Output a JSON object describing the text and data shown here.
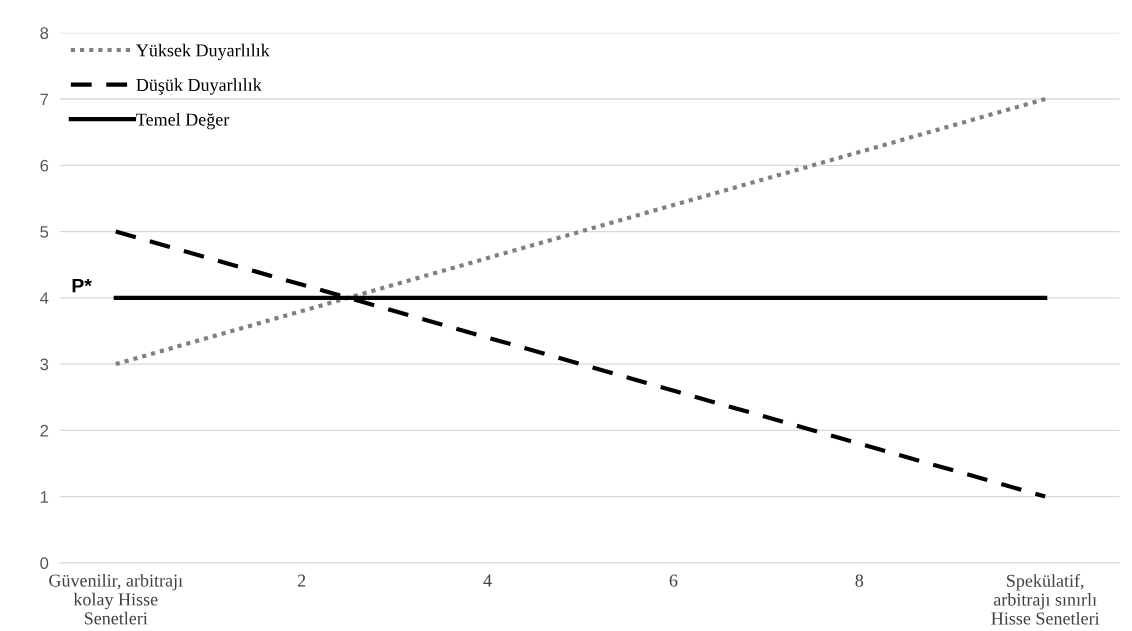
{
  "chart_data": {
    "type": "line",
    "x": [
      0,
      10
    ],
    "series": [
      {
        "name": "Yüksek Duyarlılık",
        "color": "#808080",
        "values": [
          3,
          7
        ],
        "line_style": "dotted"
      },
      {
        "name": "Düşük Duyarlılık",
        "color": "#000000",
        "values": [
          5,
          1
        ],
        "line_style": "dashed"
      },
      {
        "name": "Temel Değer",
        "color": "#000000",
        "values": [
          4,
          4
        ],
        "line_style": "solid"
      }
    ],
    "xlim": [
      -0.6,
      10.8
    ],
    "xticks": [
      {
        "value": 0,
        "label": "Güvenilir, arbitrajı\nkolay Hisse\nSenetleri"
      },
      2,
      4,
      6,
      8,
      {
        "value": 10,
        "label": "Spekülatif,\narbitrajı sınırlı\nHisse Senetleri"
      }
    ],
    "ylim": [
      0,
      8
    ],
    "yticks": [
      0,
      1,
      2,
      3,
      4,
      5,
      6,
      7,
      8
    ],
    "grid": "y",
    "legend": "top left",
    "marker": "none",
    "annotations": [
      {
        "text": "P*",
        "x": 0,
        "y": 4
      }
    ]
  }
}
